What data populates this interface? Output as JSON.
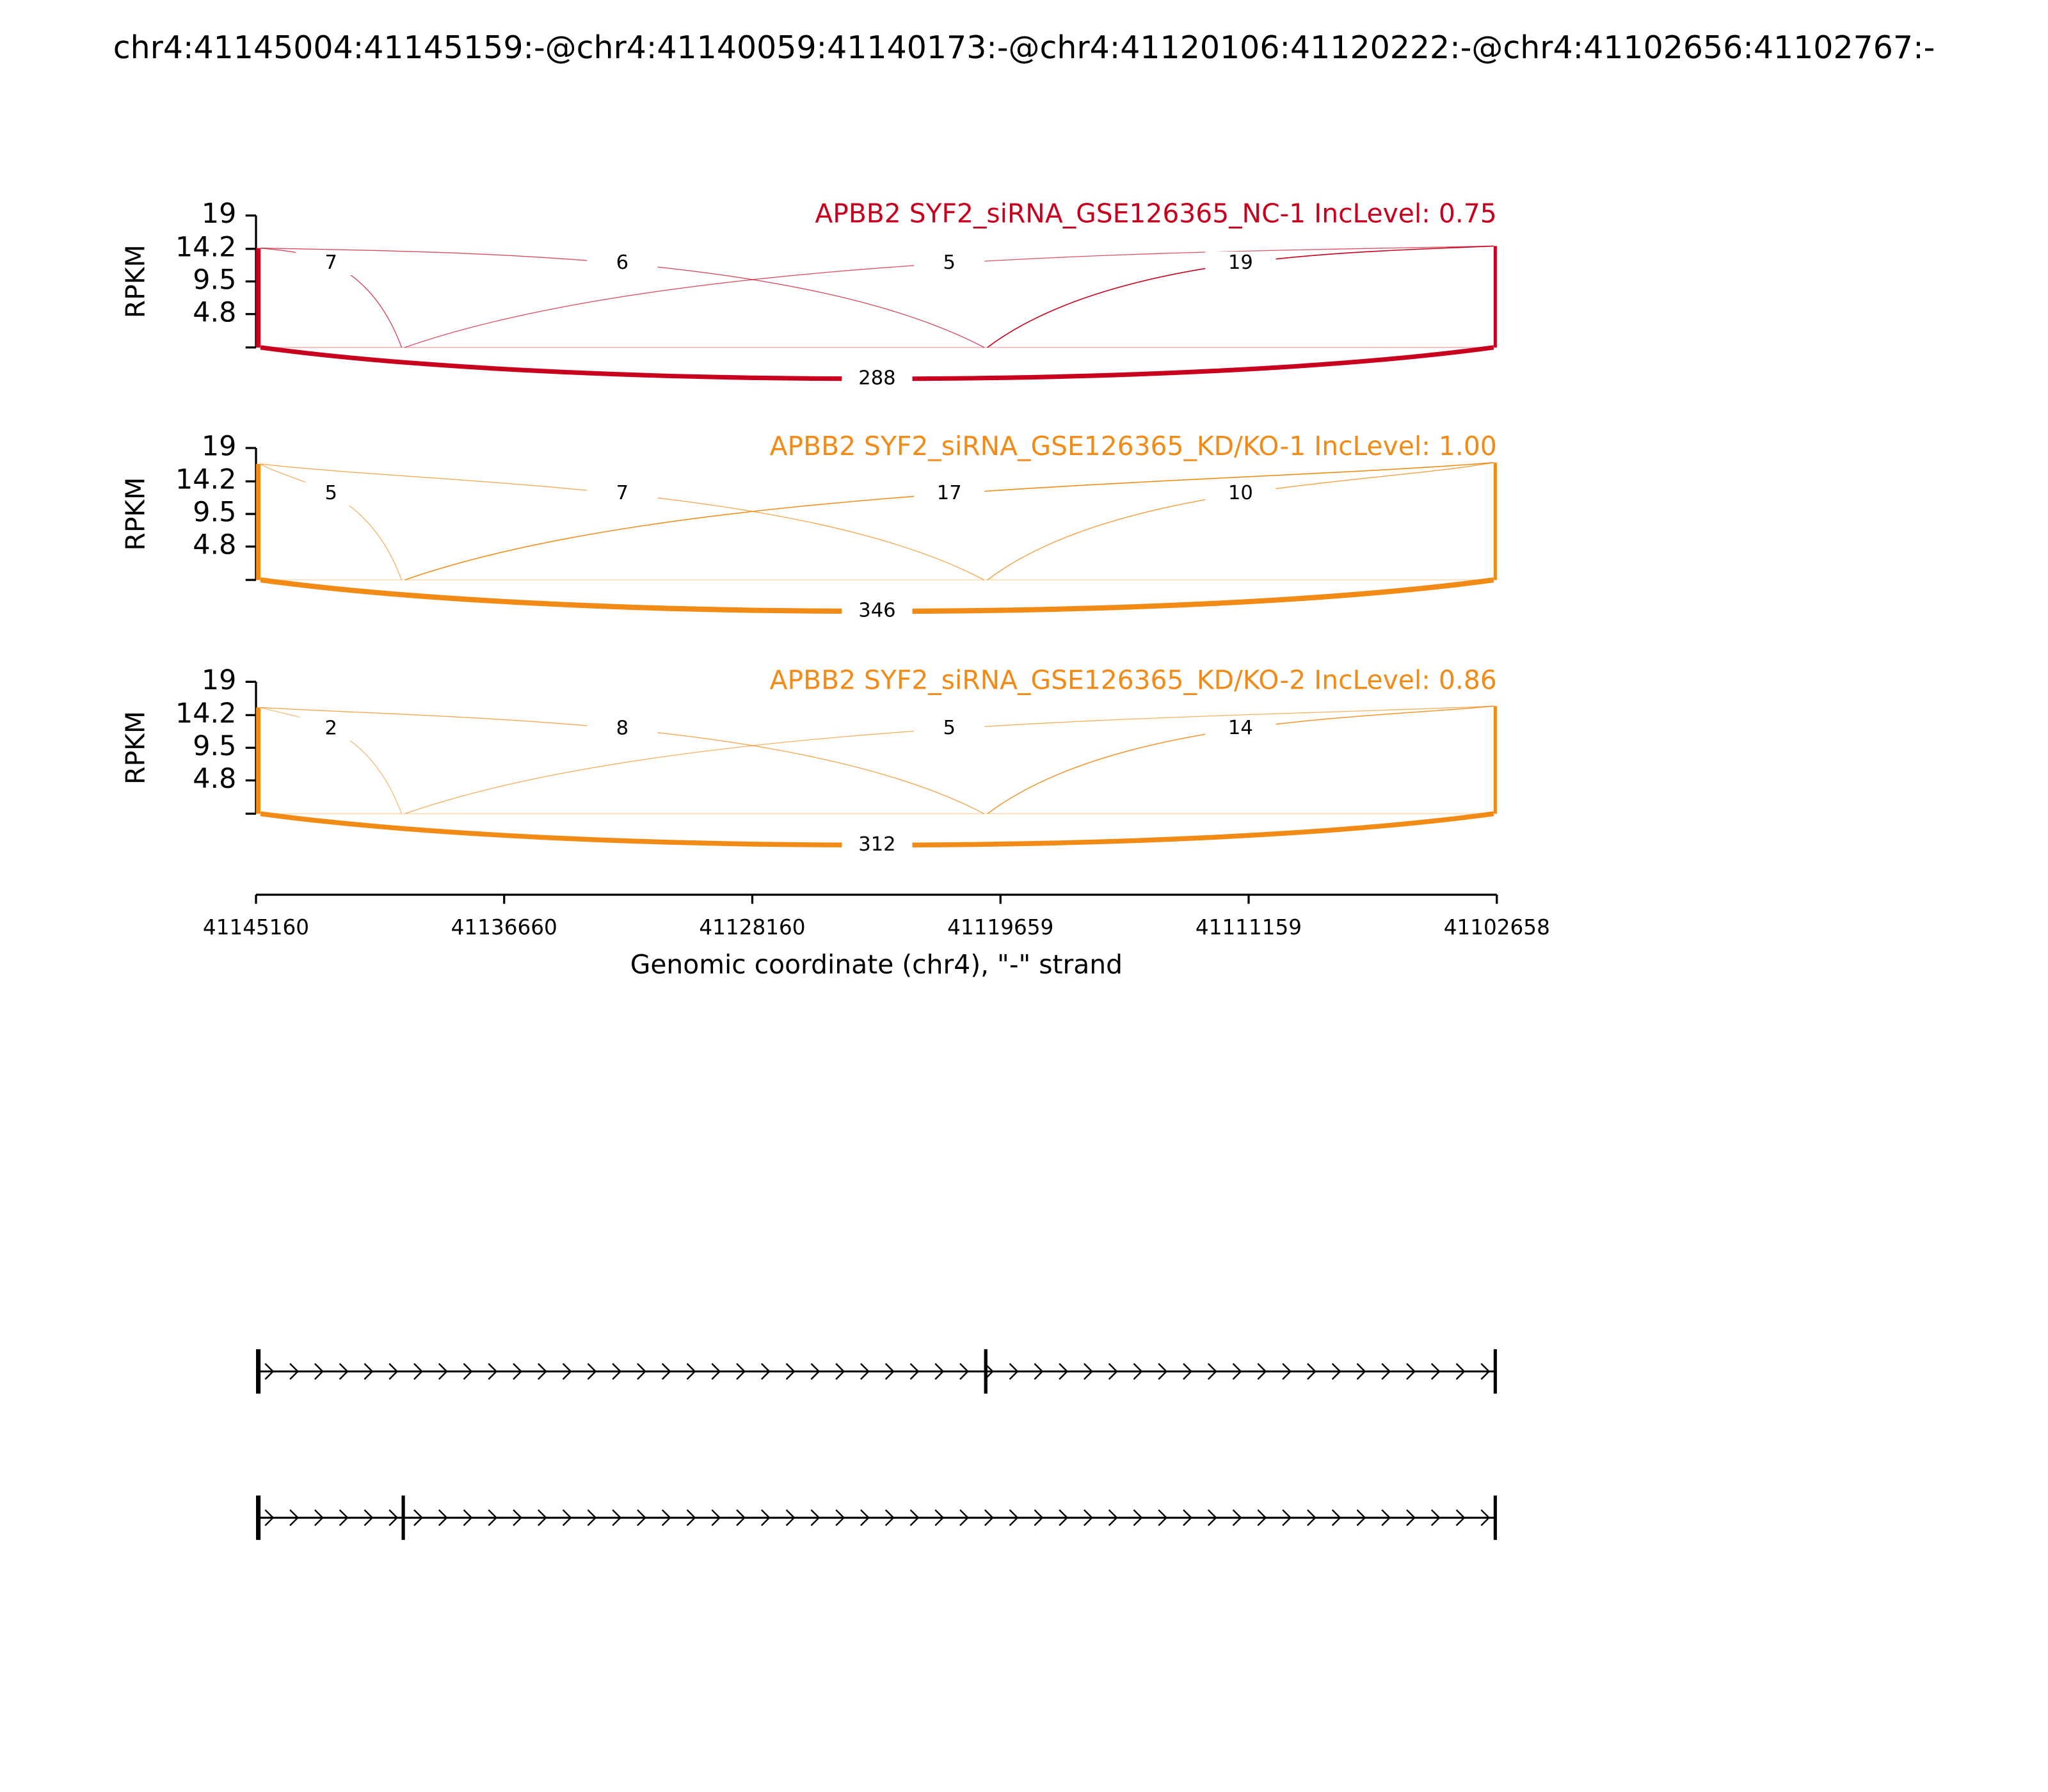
{
  "chart_data": {
    "type": "sashimi",
    "title": "chr4:41145004:41145159:-@chr4:41140059:41140173:-@chr4:41120106:41120222:-@chr4:41102656:41102767:-",
    "xlabel": "Genomic coordinate (chr4), \"-\" strand",
    "ylabel": "RPKM",
    "xlim": [
      41145160,
      41102658
    ],
    "xticks": [
      41145160,
      41136660,
      41128160,
      41119659,
      41111159,
      41102658
    ],
    "ylim": [
      0,
      19
    ],
    "yticks": [
      4.8,
      9.5,
      14.2,
      19
    ],
    "exons": [
      [
        41145004,
        41145159
      ],
      [
        41140059,
        41140173
      ],
      [
        41120106,
        41120222
      ],
      [
        41102656,
        41102767
      ]
    ],
    "panels": [
      {
        "title": "APBB2 SYF2_siRNA_GSE126365_NC-1 IncLevel: 0.75",
        "color": "#c8001e",
        "exon_rpkm": [
          14.3,
          0,
          0,
          14.6
        ],
        "junctions": [
          {
            "start": 41145004,
            "end": 41140173,
            "count": 7
          },
          {
            "start": 41145004,
            "end": 41120222,
            "count": 6
          },
          {
            "start": 41140059,
            "end": 41102767,
            "count": 5
          },
          {
            "start": 41120106,
            "end": 41102767,
            "count": 19
          },
          {
            "start": 41145004,
            "end": 41102767,
            "count": 288
          }
        ]
      },
      {
        "title": "APBB2 SYF2_siRNA_GSE126365_KD/KO-1 IncLevel: 1.00",
        "color": "#f28a16",
        "exon_rpkm": [
          16.7,
          0,
          0,
          16.9
        ],
        "junctions": [
          {
            "start": 41145004,
            "end": 41140173,
            "count": 5
          },
          {
            "start": 41145004,
            "end": 41120222,
            "count": 7
          },
          {
            "start": 41140059,
            "end": 41102767,
            "count": 17
          },
          {
            "start": 41120106,
            "end": 41102767,
            "count": 10
          },
          {
            "start": 41145004,
            "end": 41102767,
            "count": 346
          }
        ]
      },
      {
        "title": "APBB2 SYF2_siRNA_GSE126365_KD/KO-2 IncLevel: 0.86",
        "color": "#f28a16",
        "exon_rpkm": [
          15.3,
          0,
          0,
          15.5
        ],
        "junctions": [
          {
            "start": 41145004,
            "end": 41140173,
            "count": 2
          },
          {
            "start": 41145004,
            "end": 41120222,
            "count": 8
          },
          {
            "start": 41140059,
            "end": 41102767,
            "count": 5
          },
          {
            "start": 41120106,
            "end": 41102767,
            "count": 14
          },
          {
            "start": 41145004,
            "end": 41102767,
            "count": 312
          }
        ]
      }
    ],
    "transcripts": [
      [
        [
          41145004,
          41145159
        ],
        [
          41120106,
          41120222
        ],
        [
          41102656,
          41102767
        ]
      ],
      [
        [
          41145004,
          41145159
        ],
        [
          41140059,
          41140173
        ],
        [
          41102656,
          41102767
        ]
      ]
    ]
  }
}
